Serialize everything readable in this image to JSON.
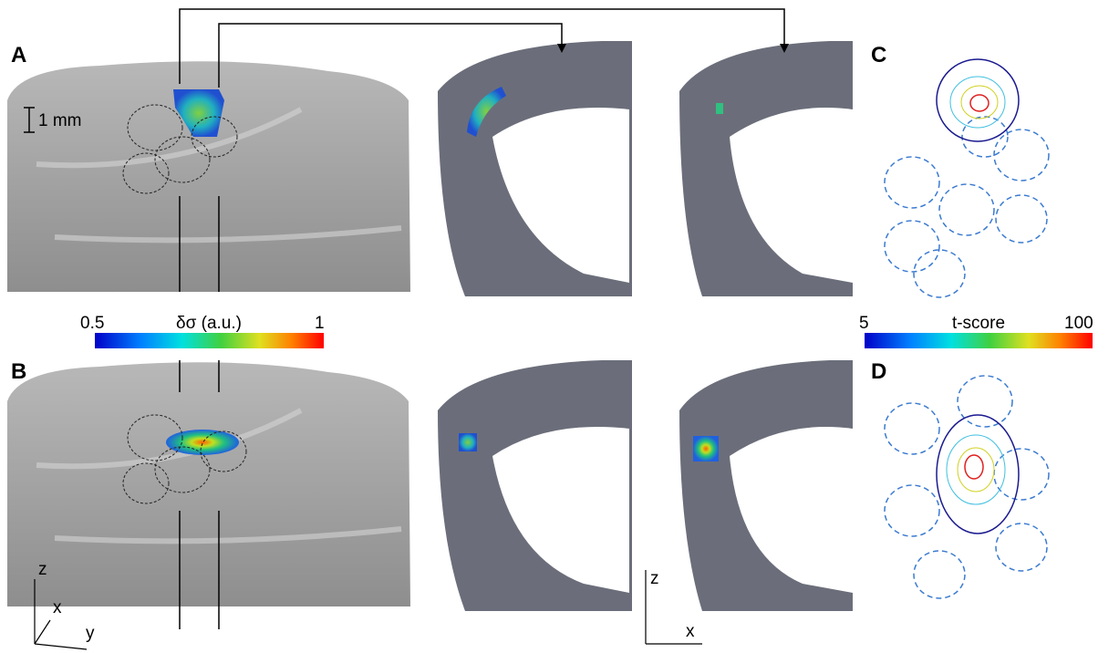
{
  "panels": {
    "a": "A",
    "b": "B",
    "c": "C",
    "d": "D"
  },
  "scale_bar": "1 mm",
  "colorbars": [
    {
      "min": 0.5,
      "label": "δσ (a.u.)",
      "max": 1
    },
    {
      "min": 5,
      "label": "t-score",
      "max": 100
    }
  ],
  "axes": {
    "left": {
      "z": "z",
      "x": "x",
      "y": "y"
    },
    "middle": {
      "z": "z",
      "x": "x"
    }
  }
}
